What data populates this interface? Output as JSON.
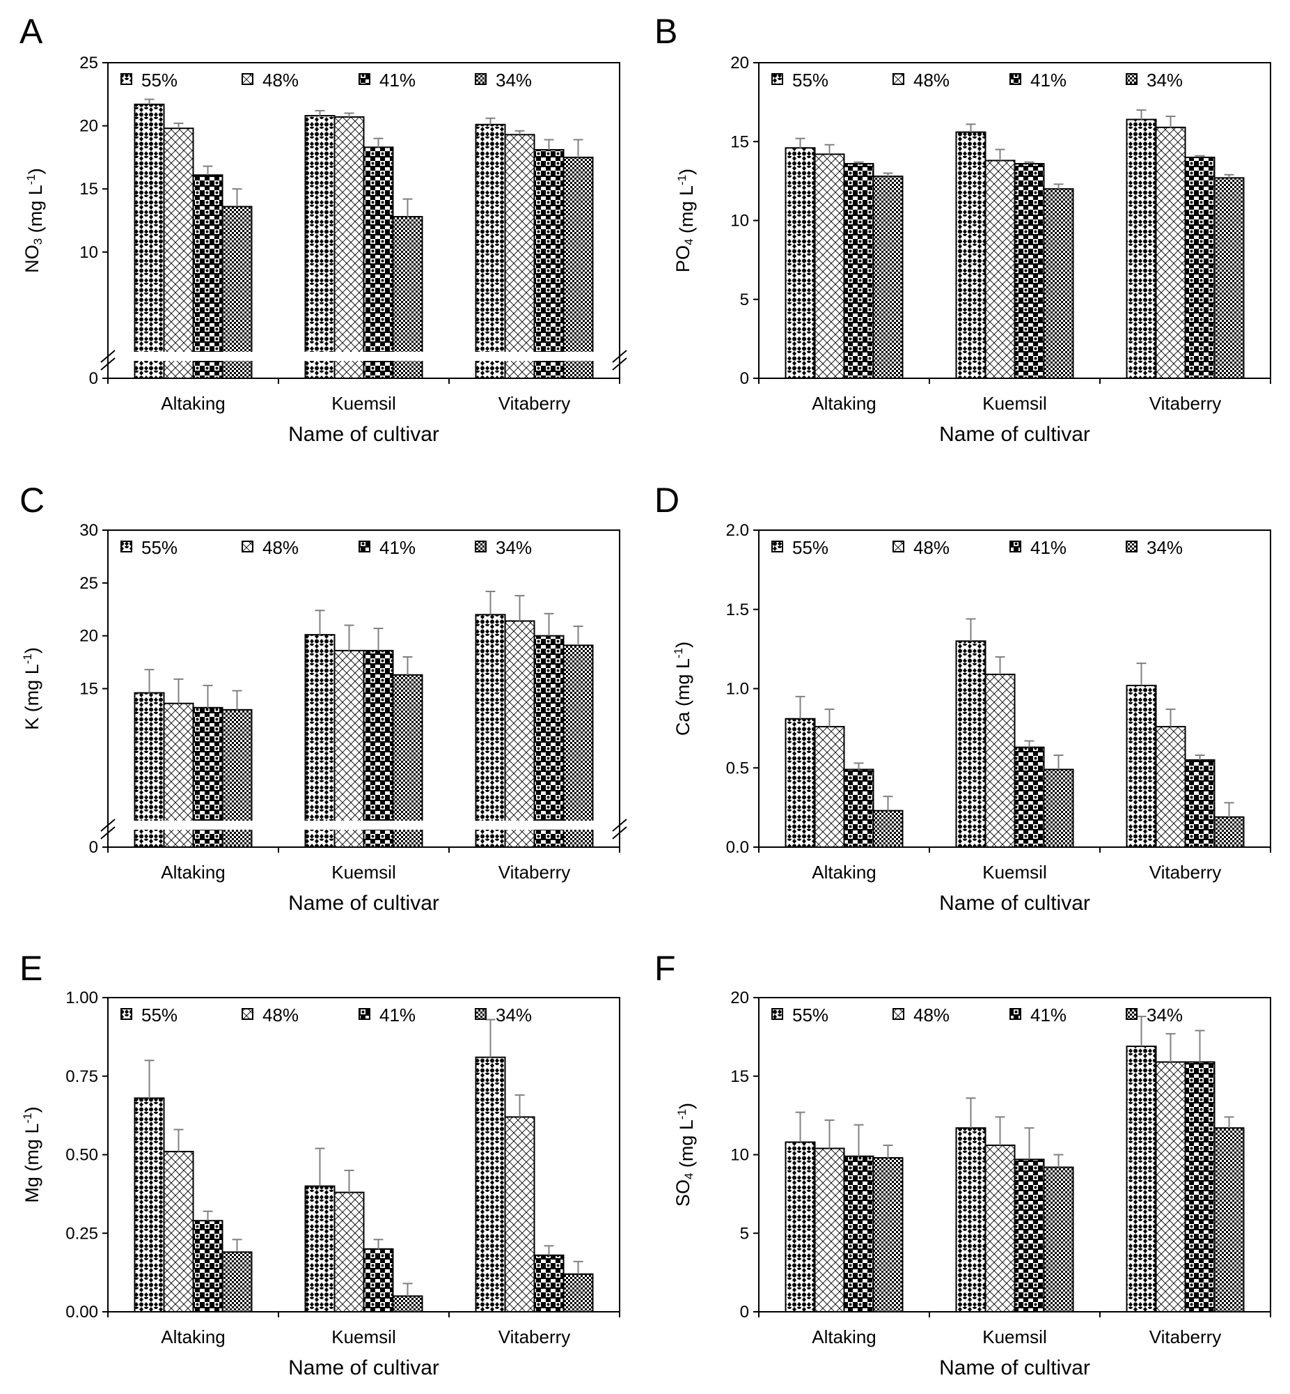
{
  "figure": {
    "legend_labels": [
      "55%",
      "48%",
      "41%",
      "34%"
    ],
    "colors": {
      "bar_fill": "#ffffff",
      "bar_stroke": "#000000",
      "error_bar": "#808080",
      "pattern_dark": "#000000"
    }
  },
  "chart_data": [
    {
      "panel": "A",
      "type": "bar",
      "title": "",
      "xlabel": "Name of cultivar",
      "ylabel": {
        "main": "NO",
        "sub": "3",
        "tail": " (mg L",
        "sup": "-1",
        "close": ")"
      },
      "categories": [
        "Altaking",
        "Kuemsil",
        "Vitaberry"
      ],
      "ylim": [
        0,
        25
      ],
      "yticks": [
        0,
        10,
        15,
        20,
        25
      ],
      "ytick_labels": [
        "0",
        "10",
        "15",
        "20",
        "25"
      ],
      "axis_break": {
        "from": 0,
        "to": 8
      },
      "series": [
        {
          "name": "55%",
          "values": [
            21.7,
            20.8,
            20.1
          ],
          "errors": [
            0.4,
            0.4,
            0.5
          ]
        },
        {
          "name": "48%",
          "values": [
            19.8,
            20.7,
            19.3
          ],
          "errors": [
            0.4,
            0.3,
            0.3
          ]
        },
        {
          "name": "41%",
          "values": [
            16.1,
            18.3,
            18.1
          ],
          "errors": [
            0.7,
            0.7,
            0.8
          ]
        },
        {
          "name": "34%",
          "values": [
            13.6,
            12.8,
            17.5
          ],
          "errors": [
            1.4,
            1.4,
            1.4
          ]
        }
      ]
    },
    {
      "panel": "B",
      "type": "bar",
      "title": "",
      "xlabel": "Name of cultivar",
      "ylabel": {
        "main": "PO",
        "sub": "4",
        "tail": " (mg L",
        "sup": "-1",
        "close": ")"
      },
      "categories": [
        "Altaking",
        "Kuemsil",
        "Vitaberry"
      ],
      "ylim": [
        0,
        20
      ],
      "yticks": [
        0,
        5,
        10,
        15,
        20
      ],
      "ytick_labels": [
        "0",
        "5",
        "10",
        "15",
        "20"
      ],
      "axis_break": null,
      "series": [
        {
          "name": "55%",
          "values": [
            14.6,
            15.6,
            16.4
          ],
          "errors": [
            0.6,
            0.5,
            0.6
          ]
        },
        {
          "name": "48%",
          "values": [
            14.2,
            13.8,
            15.9
          ],
          "errors": [
            0.6,
            0.7,
            0.7
          ]
        },
        {
          "name": "41%",
          "values": [
            13.6,
            13.6,
            14.0
          ],
          "errors": [
            0.1,
            0.1,
            0.1
          ]
        },
        {
          "name": "34%",
          "values": [
            12.8,
            12.0,
            12.7
          ],
          "errors": [
            0.2,
            0.3,
            0.2
          ]
        }
      ]
    },
    {
      "panel": "C",
      "type": "bar",
      "title": "",
      "xlabel": "Name of cultivar",
      "ylabel": {
        "main": "K",
        "sub": "",
        "tail": " (mg L",
        "sup": "-1",
        "close": ")"
      },
      "categories": [
        "Altaking",
        "Kuemsil",
        "Vitaberry"
      ],
      "ylim": [
        0,
        30
      ],
      "yticks": [
        0,
        15,
        20,
        25,
        30
      ],
      "ytick_labels": [
        "0",
        "15",
        "20",
        "25",
        "30"
      ],
      "axis_break": {
        "from": 0,
        "to": 10
      },
      "series": [
        {
          "name": "55%",
          "values": [
            14.6,
            20.1,
            22.0
          ],
          "errors": [
            2.2,
            2.3,
            2.2
          ]
        },
        {
          "name": "48%",
          "values": [
            13.6,
            18.6,
            21.4
          ],
          "errors": [
            2.3,
            2.4,
            2.4
          ]
        },
        {
          "name": "41%",
          "values": [
            13.2,
            18.6,
            20.0
          ],
          "errors": [
            2.1,
            2.1,
            2.1
          ]
        },
        {
          "name": "34%",
          "values": [
            13.0,
            16.3,
            19.1
          ],
          "errors": [
            1.8,
            1.7,
            1.8
          ]
        }
      ]
    },
    {
      "panel": "D",
      "type": "bar",
      "title": "",
      "xlabel": "Name of cultivar",
      "ylabel": {
        "main": "Ca",
        "sub": "",
        "tail": " (mg L",
        "sup": "-1",
        "close": ")"
      },
      "categories": [
        "Altaking",
        "Kuemsil",
        "Vitaberry"
      ],
      "ylim": [
        0,
        2
      ],
      "yticks": [
        0,
        0.5,
        1,
        1.5,
        2
      ],
      "ytick_labels": [
        "0.0",
        "0.5",
        "1.0",
        "1.5",
        "2.0"
      ],
      "axis_break": null,
      "series": [
        {
          "name": "55%",
          "values": [
            0.81,
            1.3,
            1.02
          ],
          "errors": [
            0.14,
            0.14,
            0.14
          ]
        },
        {
          "name": "48%",
          "values": [
            0.76,
            1.09,
            0.76
          ],
          "errors": [
            0.11,
            0.11,
            0.11
          ]
        },
        {
          "name": "41%",
          "values": [
            0.49,
            0.63,
            0.55
          ],
          "errors": [
            0.04,
            0.04,
            0.03
          ]
        },
        {
          "name": "34%",
          "values": [
            0.23,
            0.49,
            0.19
          ],
          "errors": [
            0.09,
            0.09,
            0.09
          ]
        }
      ]
    },
    {
      "panel": "E",
      "type": "bar",
      "title": "",
      "xlabel": "Name of cultivar",
      "ylabel": {
        "main": "Mg",
        "sub": "",
        "tail": " (mg L",
        "sup": "-1",
        "close": ")"
      },
      "categories": [
        "Altaking",
        "Kuemsil",
        "Vitaberry"
      ],
      "ylim": [
        0,
        1
      ],
      "yticks": [
        0,
        0.25,
        0.5,
        0.75,
        1
      ],
      "ytick_labels": [
        "0.00",
        "0.25",
        "0.50",
        "0.75",
        "1.00"
      ],
      "axis_break": null,
      "series": [
        {
          "name": "55%",
          "values": [
            0.68,
            0.4,
            0.81
          ],
          "errors": [
            0.12,
            0.12,
            0.12
          ]
        },
        {
          "name": "48%",
          "values": [
            0.51,
            0.38,
            0.62
          ],
          "errors": [
            0.07,
            0.07,
            0.07
          ]
        },
        {
          "name": "41%",
          "values": [
            0.29,
            0.2,
            0.18
          ],
          "errors": [
            0.03,
            0.03,
            0.03
          ]
        },
        {
          "name": "34%",
          "values": [
            0.19,
            0.05,
            0.12
          ],
          "errors": [
            0.04,
            0.04,
            0.04
          ]
        }
      ]
    },
    {
      "panel": "F",
      "type": "bar",
      "title": "",
      "xlabel": "Name of cultivar",
      "ylabel": {
        "main": "SO",
        "sub": "4",
        "tail": " (mg L",
        "sup": "-1",
        "close": ")"
      },
      "categories": [
        "Altaking",
        "Kuemsil",
        "Vitaberry"
      ],
      "ylim": [
        0,
        20
      ],
      "yticks": [
        0,
        5,
        10,
        15,
        20
      ],
      "ytick_labels": [
        "0",
        "5",
        "10",
        "15",
        "20"
      ],
      "axis_break": null,
      "series": [
        {
          "name": "55%",
          "values": [
            10.8,
            11.7,
            16.9
          ],
          "errors": [
            1.9,
            1.9,
            1.9
          ]
        },
        {
          "name": "48%",
          "values": [
            10.4,
            10.6,
            15.9
          ],
          "errors": [
            1.8,
            1.8,
            1.8
          ]
        },
        {
          "name": "41%",
          "values": [
            9.9,
            9.7,
            15.9
          ],
          "errors": [
            2.0,
            2.0,
            2.0
          ]
        },
        {
          "name": "34%",
          "values": [
            9.8,
            9.2,
            11.7
          ],
          "errors": [
            0.8,
            0.8,
            0.7
          ]
        }
      ]
    }
  ]
}
